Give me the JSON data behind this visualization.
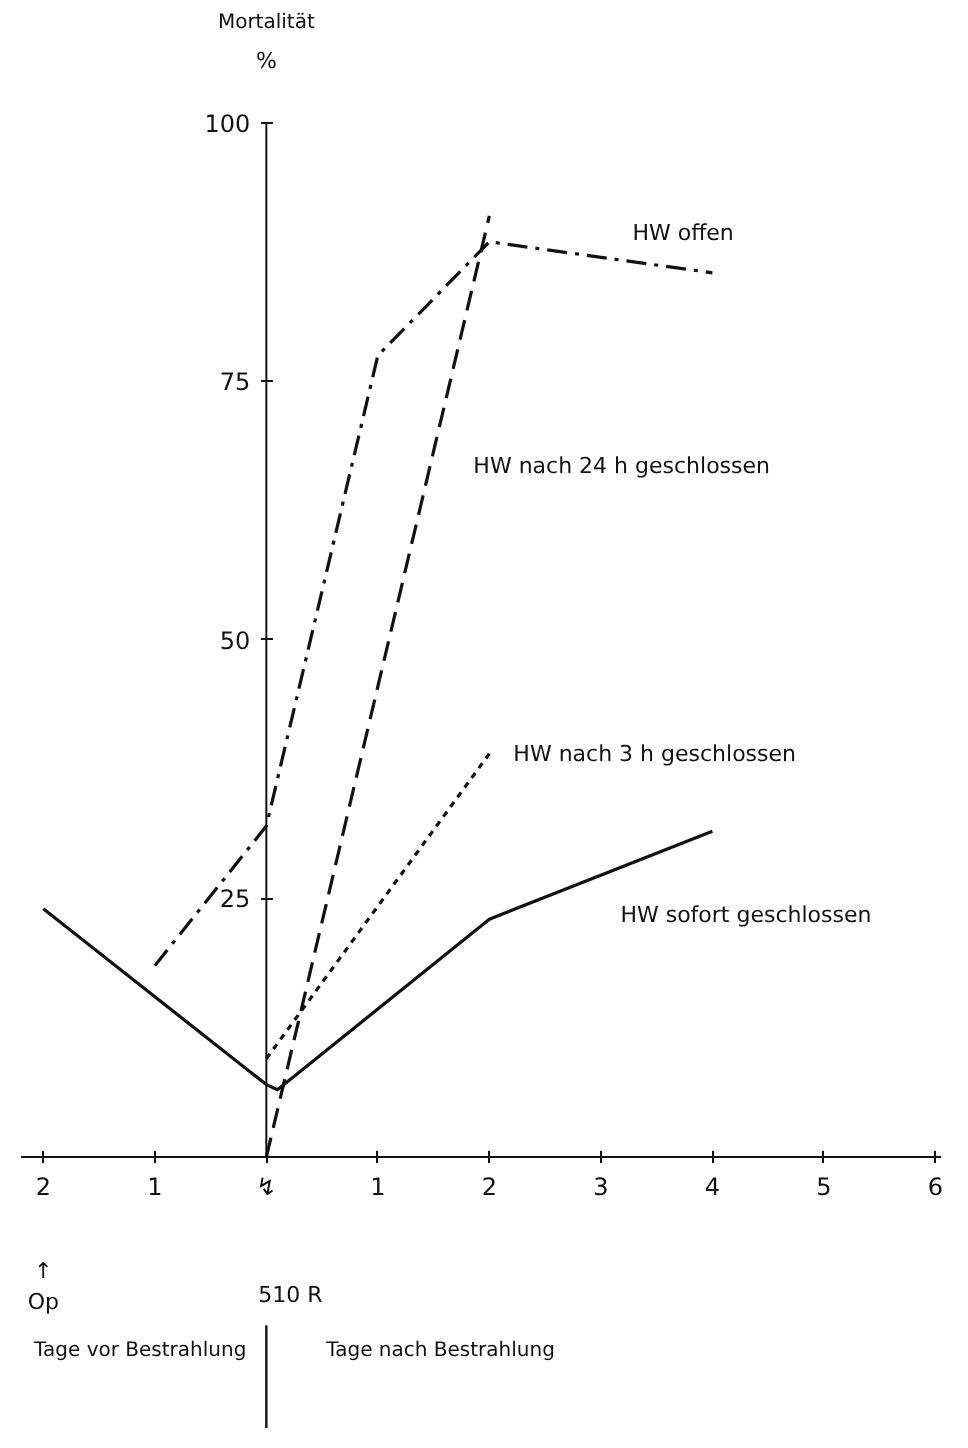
{
  "chart_data": {
    "type": "line",
    "ylabel": "Mortalität",
    "xlim": [
      -2.2,
      6.05
    ],
    "ylim": [
      0,
      100
    ],
    "xticks": [
      {
        "value": -2,
        "label": "2"
      },
      {
        "value": -1,
        "label": "1"
      },
      {
        "value": 0,
        "label": "↯"
      },
      1,
      2,
      3,
      4,
      5,
      6
    ],
    "yticks": [
      25,
      50,
      75,
      100
    ],
    "grid": false,
    "marker": "none",
    "series": [
      {
        "name": "HW offen",
        "color": "#111111",
        "line_style": "dashdot",
        "x": [
          -1,
          0,
          1,
          2,
          4
        ],
        "values": [
          18.5,
          32,
          77.5,
          88.5,
          85.5
        ]
      },
      {
        "name": "HW nach 24 h geschlossen",
        "color": "#111111",
        "line_style": "dashed",
        "x": [
          0,
          2
        ],
        "values": [
          0,
          91
        ]
      },
      {
        "name": "HW nach 3 h geschlossen",
        "color": "#111111",
        "line_style": "dotted",
        "x": [
          0,
          2
        ],
        "values": [
          9.5,
          39
        ]
      },
      {
        "name": "HW sofort geschlossen",
        "color": "#111111",
        "line_style": "solid",
        "x": [
          -2,
          0,
          0.1,
          2,
          4
        ],
        "values": [
          24,
          7,
          6.5,
          23,
          31.5
        ]
      }
    ],
    "annotations": [
      "%",
      "↑\nOp",
      "510 R",
      "Tage vor Bestrahlung",
      "Tage nach Bestrahlung"
    ]
  }
}
